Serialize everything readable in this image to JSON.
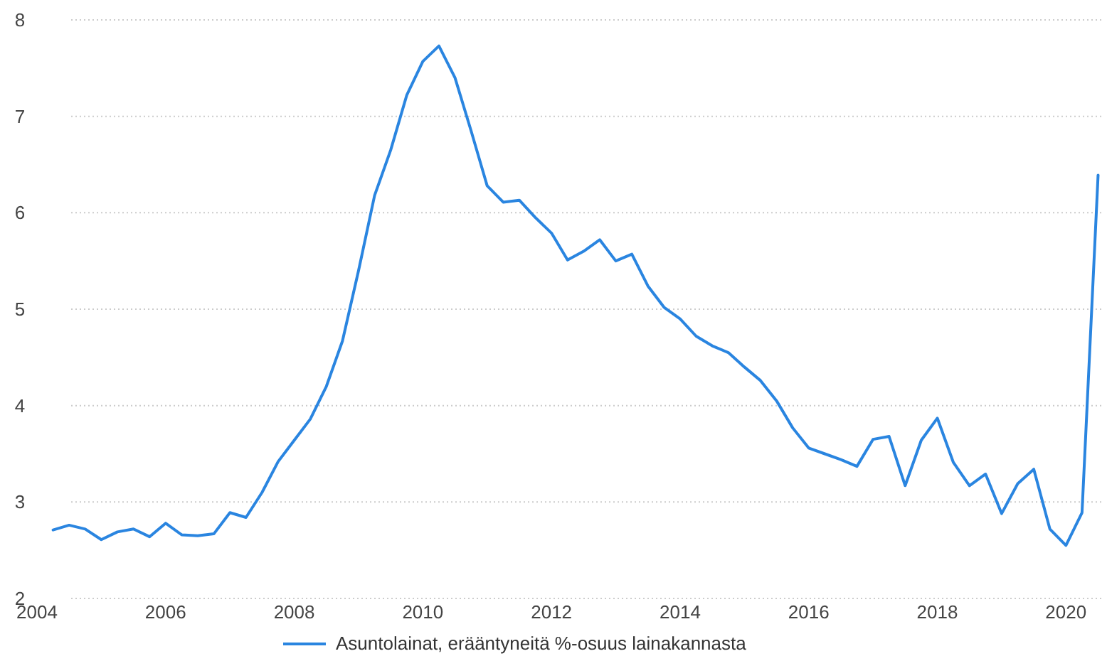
{
  "chart_data": {
    "type": "line",
    "xlim": [
      2004,
      2020.55
    ],
    "xticks": [
      2004,
      2006,
      2008,
      2010,
      2012,
      2014,
      2016,
      2018,
      2020
    ],
    "ylim": [
      2,
      8
    ],
    "yticks": [
      2,
      3,
      4,
      5,
      6,
      7,
      8
    ],
    "grid": "y",
    "legend": "bottom",
    "x": [
      2004.25,
      2004.5,
      2004.75,
      2005,
      2005.25,
      2005.5,
      2005.75,
      2006,
      2006.25,
      2006.5,
      2006.75,
      2007,
      2007.25,
      2007.5,
      2007.75,
      2008,
      2008.25,
      2008.5,
      2008.75,
      2009,
      2009.25,
      2009.5,
      2009.75,
      2010,
      2010.25,
      2010.5,
      2010.75,
      2011,
      2011.25,
      2011.5,
      2011.75,
      2012,
      2012.25,
      2012.5,
      2012.75,
      2013,
      2013.25,
      2013.5,
      2013.75,
      2014,
      2014.25,
      2014.5,
      2014.75,
      2015,
      2015.25,
      2015.5,
      2015.75,
      2016,
      2016.25,
      2016.5,
      2016.75,
      2017,
      2017.25,
      2017.5,
      2017.75,
      2018,
      2018.25,
      2018.5,
      2018.75,
      2019,
      2019.25,
      2019.5,
      2019.75,
      2020,
      2020.25,
      2020.5
    ],
    "series": [
      {
        "name": "Asuntolainat, erääntyneitä %-osuus lainakannasta",
        "color": "#2a85e0",
        "values": [
          2.71,
          2.76,
          2.72,
          2.61,
          2.69,
          2.72,
          2.64,
          2.78,
          2.66,
          2.65,
          2.67,
          2.89,
          2.84,
          3.1,
          3.42,
          3.64,
          3.86,
          4.2,
          4.67,
          5.4,
          6.18,
          6.65,
          7.22,
          7.57,
          7.73,
          7.4,
          6.85,
          6.28,
          6.11,
          6.13,
          5.95,
          5.79,
          5.51,
          5.6,
          5.72,
          5.5,
          5.57,
          5.24,
          5.02,
          4.9,
          4.72,
          4.62,
          4.55,
          4.4,
          4.26,
          4.05,
          3.77,
          3.56,
          3.5,
          3.44,
          3.37,
          3.65,
          3.68,
          3.17,
          3.64,
          3.87,
          3.41,
          3.17,
          3.29,
          2.88,
          3.19,
          3.34,
          2.72,
          2.55,
          2.89,
          6.39
        ]
      }
    ]
  }
}
